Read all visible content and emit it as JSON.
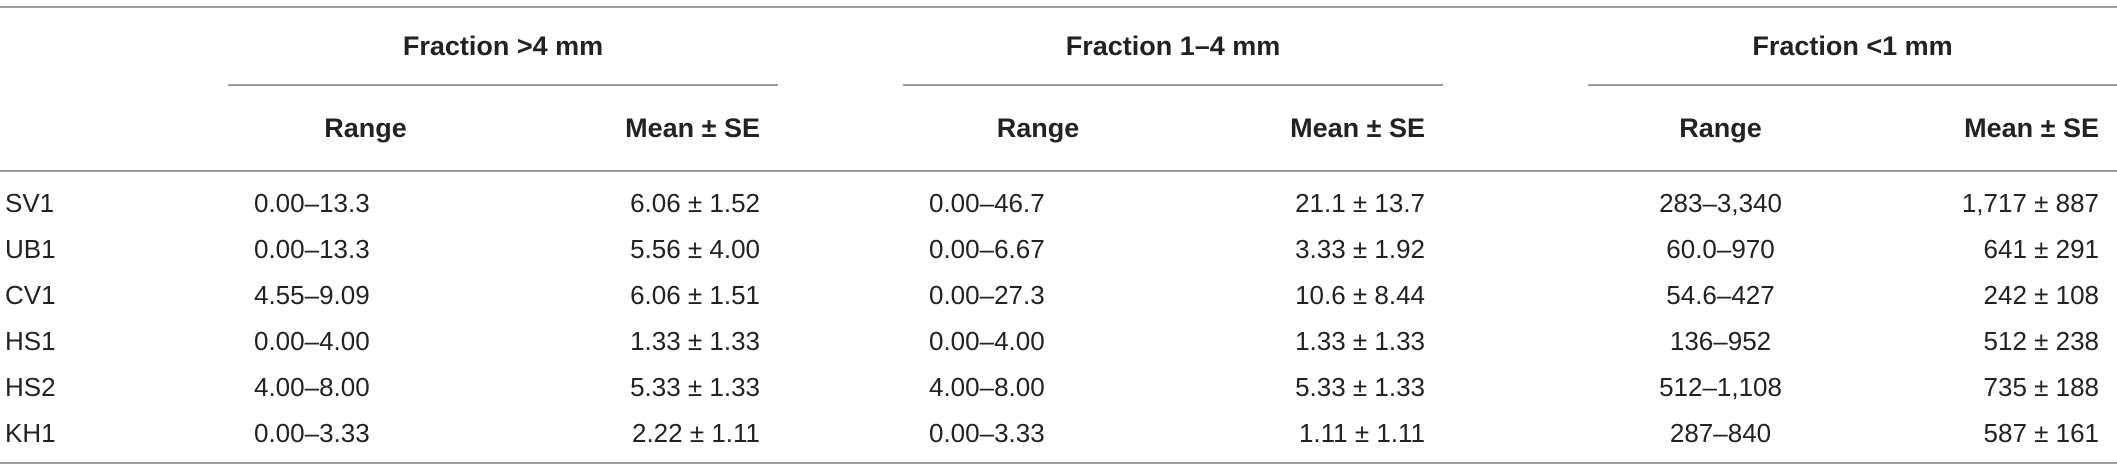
{
  "table": {
    "groups": [
      {
        "label": "Fraction >4 mm"
      },
      {
        "label": "Fraction 1–4 mm"
      },
      {
        "label": "Fraction <1 mm"
      }
    ],
    "subheaders": {
      "range": "Range",
      "mean": "Mean ± SE"
    },
    "rows": [
      {
        "site": "SV1",
        "c": [
          "0.00–13.3",
          "6.06 ± 1.52",
          "0.00–46.7",
          "21.1 ± 13.7",
          "283–3,340",
          "1,717 ± 887"
        ]
      },
      {
        "site": "UB1",
        "c": [
          "0.00–13.3",
          "5.56 ± 4.00",
          "0.00–6.67",
          "3.33 ± 1.92",
          "60.0–970",
          "641 ± 291"
        ]
      },
      {
        "site": "CV1",
        "c": [
          "4.55–9.09",
          "6.06 ± 1.51",
          "0.00–27.3",
          "10.6 ± 8.44",
          "54.6–427",
          "242 ± 108"
        ]
      },
      {
        "site": "HS1",
        "c": [
          "0.00–4.00",
          "1.33 ± 1.33",
          "0.00–4.00",
          "1.33 ± 1.33",
          "136–952",
          "512 ± 238"
        ]
      },
      {
        "site": "HS2",
        "c": [
          "4.00–8.00",
          "5.33 ± 1.33",
          "4.00–8.00",
          "5.33 ± 1.33",
          "512–1,108",
          "735 ± 188"
        ]
      },
      {
        "site": "KH1",
        "c": [
          "0.00–3.33",
          "2.22 ± 1.11",
          "0.00–3.33",
          "1.11 ± 1.11",
          "287–840",
          "587 ± 161"
        ]
      }
    ]
  }
}
